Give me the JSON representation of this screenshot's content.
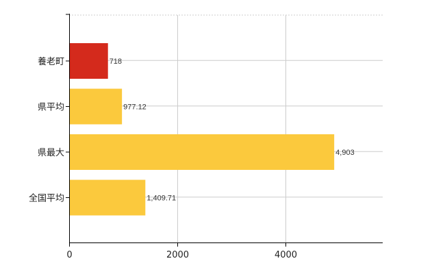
{
  "chart_data": {
    "type": "bar",
    "orientation": "horizontal",
    "categories": [
      "養老町",
      "県平均",
      "県最大",
      "全国平均"
    ],
    "values": [
      718,
      977.12,
      4903,
      1409.71
    ],
    "value_labels": [
      "718",
      "977.12",
      "4,903",
      "1,409.71"
    ],
    "bar_colors": [
      "#d42a1c",
      "#fbc93d",
      "#fbc93d",
      "#fbc93d"
    ],
    "xlim": [
      0,
      5800
    ],
    "xticks": [
      0,
      2000,
      4000
    ],
    "xtick_labels": [
      "0",
      "2000",
      "4000"
    ],
    "grid": true,
    "title": "",
    "xlabel": "",
    "ylabel": ""
  }
}
